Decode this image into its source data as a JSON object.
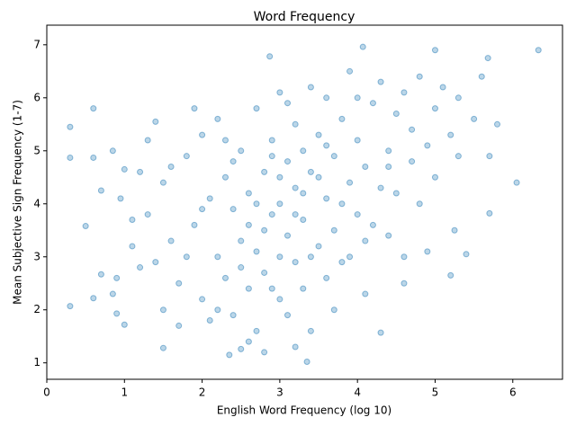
{
  "chart_data": {
    "type": "scatter",
    "title": "Word Frequency",
    "x_label": "English Word Frequency (log 10)",
    "y_label": "Mean Subjective Sign Frequency (1-7)",
    "color": "#1f77b4",
    "x": [
      0.3,
      0.3,
      0.3,
      0.5,
      0.6,
      0.6,
      0.6,
      0.7,
      0.7,
      0.85,
      0.85,
      0.9,
      0.95,
      1.0,
      6.33,
      6.05,
      5.8,
      5.7,
      4.3,
      3.35,
      4.07,
      2.87,
      5.0,
      5.68,
      2.5,
      2.35,
      1.5,
      1.2,
      1.3,
      1.4,
      1.5,
      1.6,
      1.7,
      1.8,
      1.9,
      2.0,
      2.0,
      2.1,
      2.1,
      2.2,
      2.2,
      2.3,
      2.3,
      2.4,
      2.4,
      2.5,
      2.5,
      2.6,
      2.6,
      2.7,
      2.7,
      2.7,
      2.8,
      2.8,
      2.9,
      2.9,
      3.0,
      3.0,
      3.0,
      3.1,
      3.1,
      3.1,
      3.2,
      3.2,
      3.2,
      3.3,
      3.3,
      3.3,
      3.4,
      3.4,
      3.4,
      3.5,
      3.5,
      3.6,
      3.6,
      3.6,
      3.7,
      3.7,
      3.8,
      3.8,
      3.9,
      3.9,
      4.0,
      4.0,
      4.1,
      4.1,
      4.2,
      4.2,
      4.3,
      4.3,
      4.4,
      4.4,
      4.5,
      4.5,
      4.6,
      4.6,
      4.7,
      4.7,
      4.8,
      4.8,
      4.9,
      5.0,
      5.0,
      5.1,
      5.2,
      5.2,
      5.3,
      5.3,
      5.4,
      5.5,
      5.6,
      5.7,
      1.1,
      1.2,
      1.3,
      1.5,
      1.6,
      1.7,
      1.8,
      1.9,
      2.0,
      2.2,
      2.3,
      2.5,
      2.6,
      2.8,
      2.8,
      2.9,
      3.0,
      3.1,
      3.2,
      3.3,
      3.5,
      3.7,
      3.8,
      4.0,
      4.1,
      4.6,
      4.9,
      5.25,
      3.0,
      2.7,
      3.2,
      2.9,
      3.4,
      2.6,
      3.6,
      2.4,
      3.9,
      4.4,
      1.4,
      1.0,
      1.1,
      0.9
    ],
    "values": [
      5.45,
      4.87,
      2.07,
      3.58,
      5.8,
      4.87,
      2.22,
      4.25,
      2.67,
      5.0,
      2.3,
      1.93,
      4.1,
      1.72,
      6.9,
      4.4,
      5.5,
      3.82,
      1.57,
      1.02,
      6.96,
      6.78,
      6.9,
      6.75,
      1.26,
      1.15,
      1.28,
      4.6,
      3.8,
      2.9,
      4.4,
      3.3,
      2.5,
      4.9,
      3.6,
      2.2,
      5.3,
      4.1,
      1.8,
      3.0,
      5.6,
      2.6,
      4.5,
      3.9,
      1.9,
      5.0,
      3.3,
      2.4,
      4.2,
      5.8,
      3.1,
      1.6,
      4.6,
      2.7,
      3.8,
      5.2,
      2.2,
      4.0,
      6.1,
      3.4,
      4.8,
      1.9,
      2.9,
      5.5,
      4.3,
      3.7,
      2.4,
      5.0,
      4.6,
      1.6,
      6.2,
      3.2,
      5.3,
      4.1,
      2.6,
      6.0,
      4.9,
      3.5,
      5.6,
      2.9,
      4.4,
      6.5,
      3.8,
      5.2,
      4.7,
      2.3,
      5.9,
      3.6,
      4.3,
      6.3,
      5.0,
      3.4,
      5.7,
      4.2,
      6.1,
      3.0,
      4.8,
      5.4,
      6.4,
      4.0,
      5.1,
      5.8,
      4.5,
      6.2,
      5.3,
      2.65,
      4.9,
      6.0,
      3.05,
      5.6,
      6.4,
      4.9,
      3.2,
      2.8,
      5.2,
      2.0,
      4.7,
      1.7,
      3.0,
      5.8,
      3.9,
      2.0,
      5.2,
      2.8,
      1.4,
      3.5,
      1.2,
      4.9,
      3.0,
      5.9,
      1.3,
      4.2,
      4.5,
      2.0,
      4.0,
      6.0,
      3.3,
      2.5,
      3.1,
      3.5,
      4.5,
      4.0,
      3.8,
      2.4,
      3.0,
      3.6,
      5.1,
      4.8,
      3.0,
      4.7,
      5.55,
      4.65,
      3.7,
      2.6
    ],
    "xlim": [
      0,
      6.64
    ],
    "ylim": [
      0.69,
      7.37
    ],
    "xticks": [
      0,
      1,
      2,
      3,
      4,
      5,
      6
    ],
    "yticks": [
      1,
      2,
      3,
      4,
      5,
      6,
      7
    ]
  }
}
